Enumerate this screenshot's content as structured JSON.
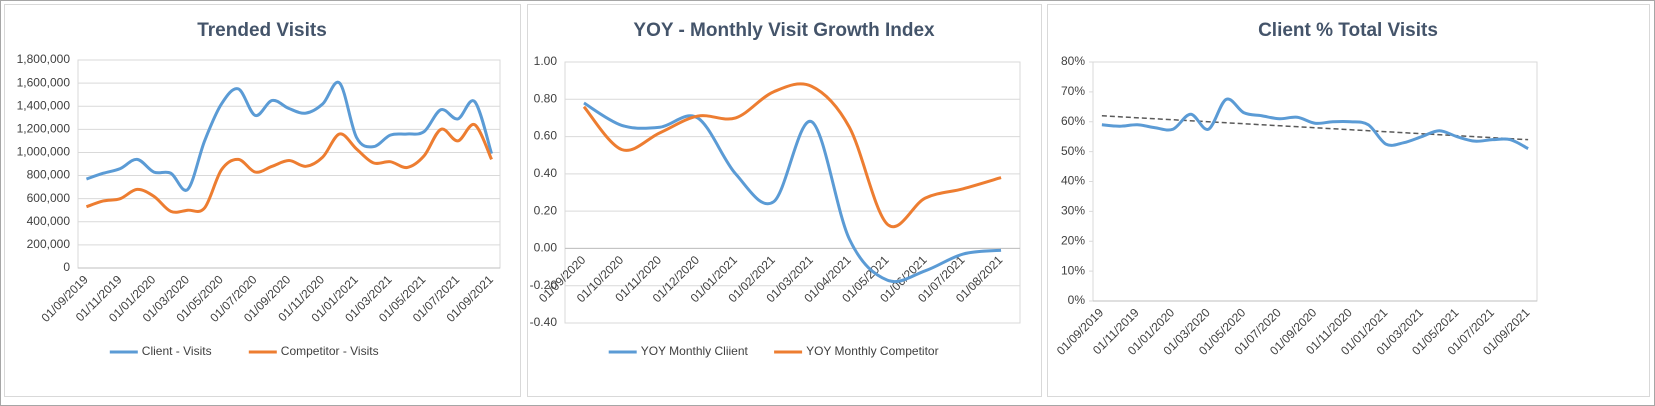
{
  "chart_data": [
    {
      "type": "line",
      "title": "Trended Visits",
      "legend": "bottom",
      "grid": true,
      "categories": [
        "01/09/2019",
        null,
        "01/11/2019",
        null,
        "01/01/2020",
        null,
        "01/03/2020",
        null,
        "01/05/2020",
        null,
        "01/07/2020",
        null,
        "01/09/2020",
        null,
        "01/11/2020",
        null,
        "01/01/2021",
        null,
        "01/03/2021",
        null,
        "01/05/2021",
        null,
        "01/07/2021",
        null,
        "01/09/2021"
      ],
      "series": [
        {
          "name": "Client - Visits",
          "color": "#5b9bd5",
          "values": [
            770000,
            820000,
            860000,
            940000,
            830000,
            820000,
            680000,
            1100000,
            1420000,
            1550000,
            1320000,
            1450000,
            1380000,
            1340000,
            1420000,
            1600000,
            1130000,
            1050000,
            1150000,
            1160000,
            1180000,
            1370000,
            1290000,
            1440000,
            990000
          ]
        },
        {
          "name": "Competitor - Visits",
          "color": "#ed7d31",
          "values": [
            530000,
            580000,
            600000,
            680000,
            620000,
            490000,
            500000,
            520000,
            850000,
            940000,
            830000,
            880000,
            930000,
            880000,
            960000,
            1160000,
            1030000,
            910000,
            920000,
            870000,
            970000,
            1200000,
            1100000,
            1240000,
            940000
          ]
        }
      ],
      "ylim": [
        0,
        1800000
      ],
      "yticks": [
        0,
        {
          "value": 200000,
          "label": "200,000"
        },
        {
          "value": 400000,
          "label": "400,000"
        },
        {
          "value": 600000,
          "label": "600,000"
        },
        {
          "value": 800000,
          "label": "800,000"
        },
        {
          "value": 1000000,
          "label": "1,000,000"
        },
        {
          "value": 1200000,
          "label": "1,200,000"
        },
        {
          "value": 1400000,
          "label": "1,400,000"
        },
        {
          "value": 1600000,
          "label": "1,600,000"
        },
        {
          "value": 1800000,
          "label": "1,800,000"
        }
      ]
    },
    {
      "type": "line",
      "title": "YOY - Monthly Visit Growth Index",
      "legend": "bottom",
      "grid": true,
      "categories": [
        "01/09/2020",
        "01/10/2020",
        "01/11/2020",
        "01/12/2020",
        "01/01/2021",
        "01/02/2021",
        "01/03/2021",
        "01/04/2021",
        "01/05/2021",
        "01/06/2021",
        "01/07/2021",
        "01/08/2021"
      ],
      "series": [
        {
          "name": "YOY Monthly Cliient",
          "color": "#5b9bd5",
          "values": [
            0.78,
            0.66,
            0.65,
            0.7,
            0.4,
            0.25,
            0.68,
            0.05,
            -0.17,
            -0.12,
            -0.03,
            -0.01
          ]
        },
        {
          "name": "YOY Monthly Competitor",
          "color": "#ed7d31",
          "values": [
            0.76,
            0.53,
            0.62,
            0.71,
            0.7,
            0.84,
            0.87,
            0.65,
            0.13,
            0.27,
            0.32,
            0.38
          ]
        }
      ],
      "ylim": [
        -0.4,
        1.0
      ],
      "yticks": [
        {
          "value": -0.4,
          "label": "-0.40"
        },
        {
          "value": -0.2,
          "label": "-0.20"
        },
        {
          "value": 0,
          "label": "0.00"
        },
        {
          "value": 0.2,
          "label": "0.20"
        },
        {
          "value": 0.4,
          "label": "0.40"
        },
        {
          "value": 0.6,
          "label": "0.60"
        },
        {
          "value": 0.8,
          "label": "0.80"
        },
        {
          "value": 1.0,
          "label": "1.00"
        }
      ]
    },
    {
      "type": "line",
      "title": "Client % Total Visits",
      "grid": false,
      "categories": [
        "01/09/2019",
        null,
        "01/11/2019",
        null,
        "01/01/2020",
        null,
        "01/03/2020",
        null,
        "01/05/2020",
        null,
        "01/07/2020",
        null,
        "01/09/2020",
        null,
        "01/11/2020",
        null,
        "01/01/2021",
        null,
        "01/03/2021",
        null,
        "01/05/2021",
        null,
        "01/07/2021",
        null,
        "01/09/2021"
      ],
      "series": [
        {
          "color": "#5b9bd5",
          "values": [
            59,
            58.5,
            59,
            58,
            57.5,
            62.5,
            57.5,
            67.5,
            63,
            62,
            61,
            61.5,
            59.5,
            60,
            60,
            59,
            52.5,
            53,
            55,
            57,
            55,
            53.5,
            54,
            54,
            51
          ]
        }
      ],
      "trendline": {
        "color": "#595959",
        "values": [
          62,
          54
        ]
      },
      "ylim": [
        0,
        80
      ],
      "yticks": [
        {
          "value": 0,
          "label": "0%"
        },
        {
          "value": 10,
          "label": "10%"
        },
        {
          "value": 20,
          "label": "20%"
        },
        {
          "value": 30,
          "label": "30%"
        },
        {
          "value": 40,
          "label": "40%"
        },
        {
          "value": 50,
          "label": "50%"
        },
        {
          "value": 60,
          "label": "60%"
        },
        {
          "value": 70,
          "label": "70%"
        },
        {
          "value": 80,
          "label": "80%"
        }
      ]
    }
  ]
}
